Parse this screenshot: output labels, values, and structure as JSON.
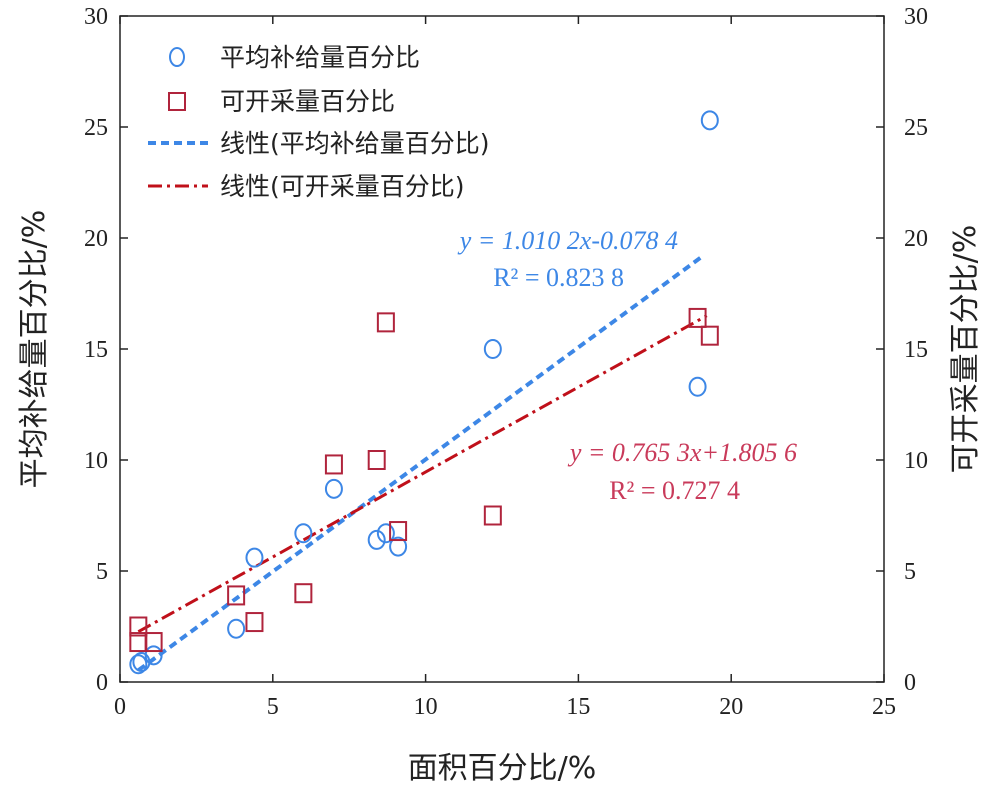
{
  "chart_data": {
    "type": "scatter",
    "xlabel": "面积百分比/%",
    "ylabel_left": "平均补给量百分比/%",
    "ylabel_right": "可开采量百分比/%",
    "xlim": [
      0,
      25
    ],
    "ylim": [
      0,
      30
    ],
    "x_ticks": [
      0,
      5,
      10,
      15,
      20,
      25
    ],
    "y_ticks": [
      0,
      5,
      10,
      15,
      20,
      25,
      30
    ],
    "x_tick_labels": [
      "0",
      "5",
      "10",
      "15",
      "20",
      "25"
    ],
    "y_tick_labels": [
      "0",
      "5",
      "10",
      "15",
      "20",
      "25",
      "30"
    ],
    "legend_position": "top-left",
    "series": [
      {
        "name": "平均补给量百分比",
        "marker": "circle",
        "color": "#3d87e6",
        "points": [
          [
            0.6,
            0.8
          ],
          [
            0.7,
            0.9
          ],
          [
            1.1,
            1.2
          ],
          [
            3.8,
            2.4
          ],
          [
            4.4,
            5.6
          ],
          [
            6.0,
            6.7
          ],
          [
            7.0,
            8.7
          ],
          [
            8.4,
            6.4
          ],
          [
            8.7,
            6.7
          ],
          [
            9.1,
            6.1
          ],
          [
            12.2,
            15.0
          ],
          [
            18.9,
            13.3
          ],
          [
            19.3,
            25.3
          ]
        ]
      },
      {
        "name": "可开采量百分比",
        "marker": "square",
        "color": "#b0243c",
        "points": [
          [
            0.6,
            2.5
          ],
          [
            0.6,
            1.8
          ],
          [
            1.1,
            1.8
          ],
          [
            3.8,
            3.9
          ],
          [
            4.4,
            2.7
          ],
          [
            6.0,
            4.0
          ],
          [
            7.0,
            9.8
          ],
          [
            8.4,
            10.0
          ],
          [
            8.7,
            16.2
          ],
          [
            9.1,
            6.8
          ],
          [
            12.2,
            7.5
          ],
          [
            18.9,
            16.4
          ],
          [
            19.3,
            15.6
          ]
        ]
      }
    ],
    "trendlines": [
      {
        "name": "线性(平均补给量百分比)",
        "style": "dashed",
        "color": "#3d87e6",
        "slope": 1.0102,
        "intercept": -0.0784,
        "x_range": [
          0.6,
          19.0
        ],
        "equation": "y = 1.010 2x-0.078 4",
        "r2": "R² = 0.823 8"
      },
      {
        "name": "线性(可开采量百分比)",
        "style": "dashdot",
        "color": "#c0101a",
        "slope": 0.7653,
        "intercept": 1.8056,
        "x_range": [
          0.6,
          19.2
        ],
        "equation": "y = 0.765 3x+1.805 6",
        "r2": "R² = 0.727 4"
      }
    ],
    "equation_colors": {
      "blue": "#3d87e6",
      "red": "#c93a5a"
    }
  }
}
